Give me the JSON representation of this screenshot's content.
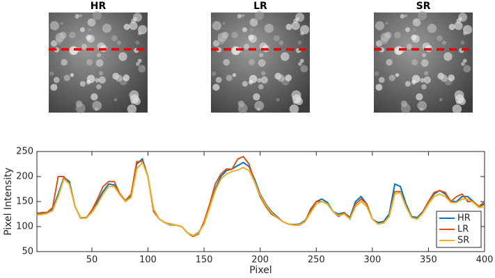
{
  "image_titles": [
    "HR",
    "LR",
    "SR"
  ],
  "chart_data": {
    "type": "line",
    "xlabel": "Pixel",
    "ylabel": "Pixel Intensity",
    "x": [
      1,
      5,
      10,
      15,
      20,
      25,
      30,
      35,
      40,
      45,
      50,
      55,
      60,
      65,
      70,
      75,
      80,
      85,
      90,
      95,
      100,
      105,
      110,
      115,
      120,
      125,
      130,
      135,
      140,
      145,
      150,
      155,
      160,
      165,
      170,
      175,
      180,
      185,
      190,
      195,
      200,
      205,
      210,
      215,
      220,
      225,
      230,
      235,
      240,
      245,
      250,
      255,
      260,
      265,
      270,
      275,
      280,
      285,
      290,
      295,
      300,
      305,
      310,
      315,
      320,
      325,
      330,
      335,
      340,
      345,
      350,
      355,
      360,
      365,
      370,
      375,
      380,
      385,
      390,
      395,
      400
    ],
    "series": [
      {
        "name": "HR",
        "color": "#0072bd",
        "values": [
          127,
          127,
          128,
          135,
          165,
          198,
          190,
          140,
          118,
          118,
          130,
          150,
          170,
          185,
          183,
          165,
          150,
          160,
          225,
          235,
          200,
          135,
          115,
          108,
          103,
          103,
          100,
          88,
          82,
          88,
          105,
          140,
          175,
          200,
          212,
          215,
          222,
          228,
          220,
          195,
          165,
          145,
          130,
          120,
          110,
          105,
          104,
          105,
          112,
          130,
          150,
          155,
          148,
          130,
          125,
          128,
          118,
          150,
          160,
          145,
          115,
          108,
          110,
          125,
          185,
          180,
          145,
          120,
          118,
          130,
          150,
          165,
          172,
          165,
          150,
          150,
          160,
          160,
          150,
          140,
          145
        ]
      },
      {
        "name": "LR",
        "color": "#d95319",
        "values": [
          125,
          128,
          128,
          138,
          200,
          200,
          185,
          140,
          117,
          117,
          133,
          155,
          180,
          190,
          190,
          165,
          152,
          165,
          230,
          230,
          200,
          130,
          115,
          108,
          105,
          103,
          100,
          88,
          80,
          85,
          110,
          145,
          185,
          205,
          215,
          215,
          235,
          240,
          225,
          190,
          160,
          140,
          125,
          118,
          110,
          105,
          103,
          103,
          110,
          135,
          150,
          150,
          145,
          130,
          120,
          128,
          115,
          145,
          155,
          145,
          115,
          105,
          108,
          120,
          170,
          170,
          140,
          118,
          115,
          128,
          150,
          168,
          172,
          168,
          150,
          160,
          165,
          150,
          150,
          140,
          150
        ]
      },
      {
        "name": "SR",
        "color": "#edb120",
        "values": [
          123,
          124,
          126,
          132,
          160,
          195,
          185,
          140,
          118,
          117,
          128,
          145,
          165,
          180,
          180,
          163,
          150,
          158,
          215,
          228,
          200,
          135,
          115,
          108,
          104,
          103,
          100,
          88,
          82,
          87,
          105,
          138,
          172,
          195,
          205,
          210,
          213,
          218,
          212,
          190,
          163,
          143,
          128,
          118,
          110,
          105,
          103,
          104,
          110,
          128,
          145,
          150,
          145,
          130,
          122,
          125,
          115,
          140,
          150,
          140,
          115,
          105,
          107,
          120,
          165,
          168,
          140,
          118,
          115,
          127,
          145,
          160,
          165,
          160,
          148,
          148,
          155,
          155,
          148,
          138,
          140
        ]
      }
    ],
    "xlim": [
      1,
      400
    ],
    "xticks": [
      50,
      100,
      150,
      200,
      250,
      300,
      350,
      400
    ],
    "ylim": [
      50,
      250
    ],
    "yticks": [
      50,
      100,
      150,
      200,
      250
    ],
    "grid": false,
    "legend": "lower right"
  }
}
